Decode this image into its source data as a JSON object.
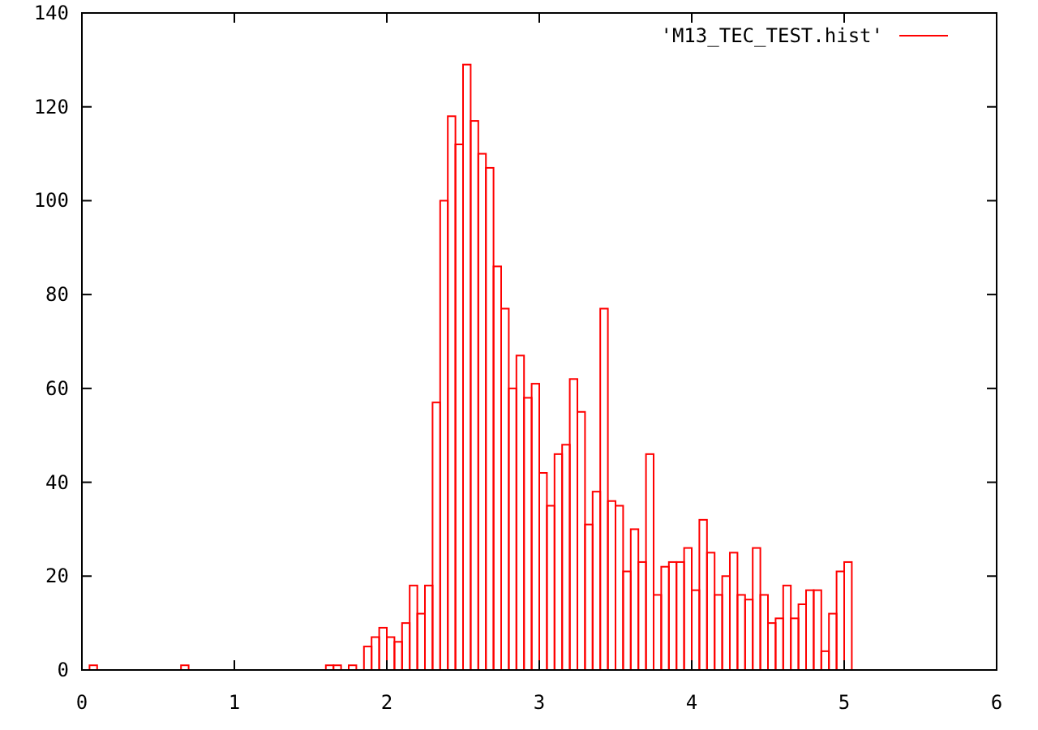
{
  "chart_data": {
    "type": "histogram",
    "bins": [
      0,
      0.05,
      0.1,
      0.15,
      0.2,
      0.25,
      0.3,
      0.35,
      0.4,
      0.45,
      0.5,
      0.55,
      0.6,
      0.65,
      0.7,
      0.75,
      0.8,
      0.85,
      0.9,
      0.95,
      1,
      1.05,
      1.1,
      1.15,
      1.2,
      1.25,
      1.3,
      1.35,
      1.4,
      1.45,
      1.5,
      1.55,
      1.6,
      1.65,
      1.7,
      1.75,
      1.8,
      1.85,
      1.9,
      1.95,
      2,
      2.05,
      2.1,
      2.15,
      2.2,
      2.25,
      2.3,
      2.35,
      2.4,
      2.45,
      2.5,
      2.55,
      2.6,
      2.65,
      2.7,
      2.75,
      2.8,
      2.85,
      2.9,
      2.95,
      3,
      3.05,
      3.1,
      3.15,
      3.2,
      3.25,
      3.3,
      3.35,
      3.4,
      3.45,
      3.5,
      3.55,
      3.6,
      3.65,
      3.7,
      3.75,
      3.8,
      3.85,
      3.9,
      3.95,
      4,
      4.05,
      4.1,
      4.15,
      4.2,
      4.25,
      4.3,
      4.35,
      4.4,
      4.45,
      4.5,
      4.55,
      4.6,
      4.65,
      4.7,
      4.75,
      4.8,
      4.85,
      4.9,
      4.95,
      5,
      5.05
    ],
    "series": [
      {
        "name": "'M13_TEC_TEST.hist'",
        "color": "#ff0000",
        "values": [
          0,
          1,
          0,
          0,
          0,
          0,
          0,
          0,
          0,
          0,
          0,
          0,
          0,
          1,
          0,
          0,
          0,
          0,
          0,
          0,
          0,
          0,
          0,
          0,
          0,
          0,
          0,
          0,
          0,
          0,
          0,
          0,
          1,
          1,
          0,
          1,
          0,
          5,
          7,
          9,
          7,
          6,
          10,
          18,
          12,
          18,
          57,
          100,
          118,
          112,
          129,
          117,
          110,
          107,
          86,
          77,
          60,
          67,
          58,
          61,
          42,
          35,
          46,
          48,
          62,
          55,
          31,
          38,
          77,
          36,
          35,
          21,
          30,
          23,
          46,
          16,
          22,
          23,
          23,
          26,
          17,
          32,
          25,
          16,
          20,
          25,
          16,
          15,
          26,
          16,
          10,
          11,
          18,
          11,
          14,
          17,
          17,
          4,
          12,
          21,
          23
        ]
      }
    ],
    "xlim": [
      0,
      6
    ],
    "xticks": [
      0,
      1,
      2,
      3,
      4,
      5,
      6
    ],
    "ylim": [
      0,
      140
    ],
    "yticks": [
      0,
      20,
      40,
      60,
      80,
      100,
      120,
      140
    ],
    "legend": "top right"
  }
}
